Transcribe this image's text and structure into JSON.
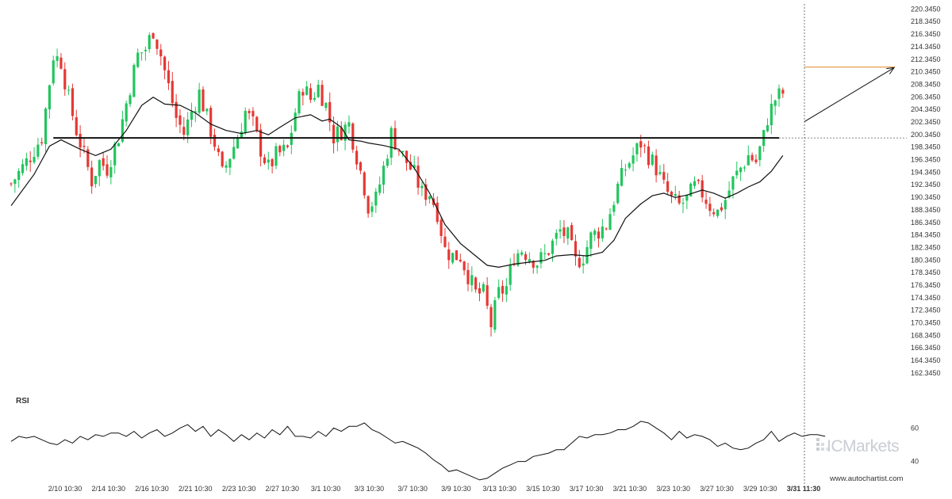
{
  "chart_data": {
    "type": "candlestick",
    "price_axis": {
      "ticks": [
        "220.3450",
        "218.3450",
        "216.3450",
        "214.3450",
        "212.3450",
        "210.3450",
        "208.3450",
        "206.3450",
        "204.3450",
        "202.3450",
        "200.3450",
        "198.3450",
        "196.3450",
        "194.3450",
        "192.3450",
        "190.3450",
        "188.3450",
        "186.3450",
        "184.3450",
        "182.3450",
        "180.3450",
        "178.3450",
        "176.3450",
        "174.3450",
        "172.3450",
        "170.3450",
        "168.3450",
        "166.3450",
        "164.3450",
        "162.3450"
      ],
      "range": [
        161.2,
        220.9
      ]
    },
    "time_axis": {
      "ticks": [
        "2/10 10:30",
        "2/14 10:30",
        "2/16 10:30",
        "2/21 10:30",
        "2/23 10:30",
        "2/27 10:30",
        "3/1 10:30",
        "3/3 10:30",
        "3/7 10:30",
        "3/9 10:30",
        "3/13 10:30",
        "3/15 10:30",
        "3/17 10:30",
        "3/21 10:30",
        "3/23 10:30",
        "3/27 10:30",
        "3/29 10:30",
        "3/31 11:30"
      ],
      "highlighted": "3/31 11:30"
    },
    "price_close_path": [
      [
        0,
        192.5
      ],
      [
        4,
        196.0
      ],
      [
        8,
        200.0
      ],
      [
        11,
        213.0
      ],
      [
        13,
        212.0
      ],
      [
        15,
        206.0
      ],
      [
        17,
        201.0
      ],
      [
        19,
        197.0
      ],
      [
        21,
        193.0
      ],
      [
        23,
        196.0
      ],
      [
        25,
        195.0
      ],
      [
        28,
        200.0
      ],
      [
        31,
        208.0
      ],
      [
        33,
        213.0
      ],
      [
        35,
        214.0
      ],
      [
        37,
        217.0
      ],
      [
        39,
        213.0
      ],
      [
        41,
        208.0
      ],
      [
        43,
        203.0
      ],
      [
        45,
        200.5
      ],
      [
        47,
        204.0
      ],
      [
        49,
        207.0
      ],
      [
        51,
        203.0
      ],
      [
        53,
        199.0
      ],
      [
        55,
        194.0
      ],
      [
        57,
        197.0
      ],
      [
        59,
        200.0
      ],
      [
        61,
        204.0
      ],
      [
        63,
        202.0
      ],
      [
        65,
        198.0
      ],
      [
        67,
        195.0
      ],
      [
        69,
        197.0
      ],
      [
        72,
        198.0
      ],
      [
        74,
        204.0
      ],
      [
        76,
        208.0
      ],
      [
        78,
        206.0
      ],
      [
        80,
        208.0
      ],
      [
        82,
        205.0
      ],
      [
        84,
        200.0
      ],
      [
        86,
        201.0
      ],
      [
        88,
        202.0
      ],
      [
        90,
        197.0
      ],
      [
        92,
        192.0
      ],
      [
        93,
        189.0
      ],
      [
        95,
        190.0
      ],
      [
        97,
        195.0
      ],
      [
        99,
        200.5
      ],
      [
        101,
        198.0
      ],
      [
        103,
        196.0
      ],
      [
        105,
        194.0
      ],
      [
        107,
        191.0
      ],
      [
        109,
        191.0
      ],
      [
        111,
        188.0
      ],
      [
        113,
        182.0
      ],
      [
        115,
        181.0
      ],
      [
        117,
        181.0
      ],
      [
        119,
        178.0
      ],
      [
        121,
        175.0
      ],
      [
        123,
        175.0
      ],
      [
        125,
        170.0
      ],
      [
        127,
        175.0
      ],
      [
        129,
        176.0
      ],
      [
        131,
        181.0
      ],
      [
        133,
        182.0
      ],
      [
        135,
        181.0
      ],
      [
        137,
        180.0
      ],
      [
        139,
        181.0
      ],
      [
        141,
        183.0
      ],
      [
        143,
        185.0
      ],
      [
        145,
        184.0
      ],
      [
        147,
        180.0
      ],
      [
        149,
        181.0
      ],
      [
        151,
        184.0
      ],
      [
        153,
        185.0
      ],
      [
        155,
        186.0
      ],
      [
        158,
        192.0
      ],
      [
        160,
        195.0
      ],
      [
        162,
        197.0
      ],
      [
        164,
        199.0
      ],
      [
        166,
        197.0
      ],
      [
        168,
        195.0
      ],
      [
        170,
        192.0
      ],
      [
        172,
        190.0
      ],
      [
        174,
        189.0
      ],
      [
        176,
        190.0
      ],
      [
        178,
        192.0
      ],
      [
        180,
        191.0
      ],
      [
        182,
        189.0
      ],
      [
        184,
        188.0
      ],
      [
        186,
        190.0
      ],
      [
        188,
        193.0
      ],
      [
        190,
        195.0
      ],
      [
        192,
        197.0
      ],
      [
        194,
        196.0
      ],
      [
        196,
        200.0
      ],
      [
        197,
        203.0
      ],
      [
        199,
        206.0
      ],
      [
        201,
        207.0
      ]
    ],
    "moving_average": [
      [
        0,
        189.0
      ],
      [
        6,
        194.0
      ],
      [
        10,
        198.5
      ],
      [
        13,
        199.5
      ],
      [
        18,
        198.0
      ],
      [
        22,
        197.0
      ],
      [
        26,
        198.0
      ],
      [
        30,
        201.0
      ],
      [
        34,
        205.0
      ],
      [
        37,
        206.3
      ],
      [
        40,
        205.2
      ],
      [
        44,
        205.0
      ],
      [
        48,
        203.8
      ],
      [
        52,
        202.0
      ],
      [
        56,
        201.0
      ],
      [
        60,
        200.5
      ],
      [
        64,
        201.0
      ],
      [
        67,
        200.3
      ],
      [
        70,
        201.5
      ],
      [
        74,
        203.0
      ],
      [
        78,
        203.5
      ],
      [
        81,
        202.5
      ],
      [
        83,
        202.8
      ],
      [
        86,
        201.5
      ],
      [
        88,
        199.5
      ],
      [
        91,
        199.3
      ],
      [
        93,
        199.0
      ],
      [
        97,
        198.6
      ],
      [
        101,
        198.0
      ],
      [
        105,
        195.0
      ],
      [
        109,
        191.0
      ],
      [
        113,
        186.0
      ],
      [
        117,
        183.0
      ],
      [
        121,
        181.0
      ],
      [
        124,
        179.5
      ],
      [
        127,
        179.2
      ],
      [
        131,
        179.7
      ],
      [
        135,
        180.0
      ],
      [
        139,
        180.3
      ],
      [
        142,
        181.0
      ],
      [
        146,
        181.2
      ],
      [
        150,
        181.0
      ],
      [
        154,
        181.6
      ],
      [
        157,
        183.5
      ],
      [
        160,
        187.0
      ],
      [
        164,
        189.3
      ],
      [
        167,
        190.6
      ],
      [
        170,
        191.0
      ],
      [
        173,
        190.3
      ],
      [
        176,
        190.7
      ],
      [
        180,
        191.5
      ],
      [
        183,
        191.0
      ],
      [
        186,
        190.2
      ],
      [
        189,
        191.0
      ],
      [
        192,
        192.0
      ],
      [
        195,
        192.8
      ],
      [
        198,
        194.5
      ],
      [
        201,
        197.0
      ]
    ],
    "support_line": {
      "value": 199.8,
      "from_index": 11,
      "to_index": 200
    },
    "target_line": {
      "value": 211.1,
      "from_index": 200,
      "to_index": 220
    },
    "projection_arrow": {
      "from": [
        200,
        202.4
      ],
      "to": [
        220,
        211.0
      ]
    },
    "rsi": {
      "title": "RSI",
      "ticks": [
        "60",
        "40"
      ],
      "range": [
        28,
        72
      ],
      "values": [
        [
          0,
          52
        ],
        [
          2,
          55
        ],
        [
          4,
          54
        ],
        [
          6,
          55
        ],
        [
          8,
          53
        ],
        [
          10,
          51
        ],
        [
          12,
          50
        ],
        [
          14,
          53
        ],
        [
          16,
          51
        ],
        [
          18,
          55
        ],
        [
          20,
          53
        ],
        [
          22,
          56
        ],
        [
          24,
          55
        ],
        [
          26,
          57
        ],
        [
          28,
          57
        ],
        [
          30,
          55
        ],
        [
          32,
          58
        ],
        [
          34,
          54
        ],
        [
          36,
          57
        ],
        [
          38,
          59
        ],
        [
          40,
          55
        ],
        [
          42,
          57
        ],
        [
          44,
          60
        ],
        [
          46,
          62
        ],
        [
          48,
          58
        ],
        [
          50,
          61
        ],
        [
          52,
          55
        ],
        [
          54,
          59
        ],
        [
          56,
          56
        ],
        [
          58,
          52
        ],
        [
          60,
          56
        ],
        [
          62,
          53
        ],
        [
          64,
          57
        ],
        [
          66,
          54
        ],
        [
          68,
          59
        ],
        [
          70,
          56
        ],
        [
          72,
          61
        ],
        [
          74,
          55
        ],
        [
          76,
          55
        ],
        [
          78,
          54
        ],
        [
          80,
          58
        ],
        [
          82,
          55
        ],
        [
          84,
          60
        ],
        [
          86,
          58
        ],
        [
          88,
          61
        ],
        [
          90,
          61
        ],
        [
          92,
          63
        ],
        [
          94,
          59
        ],
        [
          96,
          57
        ],
        [
          98,
          54
        ],
        [
          100,
          51
        ],
        [
          102,
          52
        ],
        [
          104,
          50
        ],
        [
          106,
          48
        ],
        [
          108,
          45
        ],
        [
          110,
          41
        ],
        [
          112,
          38
        ],
        [
          114,
          34
        ],
        [
          116,
          35
        ],
        [
          118,
          33
        ],
        [
          120,
          31
        ],
        [
          122,
          29
        ],
        [
          124,
          30
        ],
        [
          126,
          33
        ],
        [
          128,
          36
        ],
        [
          130,
          38
        ],
        [
          132,
          40
        ],
        [
          134,
          40
        ],
        [
          136,
          43
        ],
        [
          138,
          44
        ],
        [
          140,
          45
        ],
        [
          142,
          47
        ],
        [
          144,
          47
        ],
        [
          146,
          51
        ],
        [
          148,
          55
        ],
        [
          150,
          54
        ],
        [
          152,
          56
        ],
        [
          154,
          56
        ],
        [
          156,
          57
        ],
        [
          158,
          59
        ],
        [
          160,
          59
        ],
        [
          162,
          61
        ],
        [
          164,
          64
        ],
        [
          166,
          63
        ],
        [
          168,
          60
        ],
        [
          170,
          57
        ],
        [
          172,
          53
        ],
        [
          174,
          58
        ],
        [
          176,
          54
        ],
        [
          178,
          56
        ],
        [
          180,
          55
        ],
        [
          182,
          53
        ],
        [
          184,
          49
        ],
        [
          186,
          51
        ],
        [
          188,
          48
        ],
        [
          190,
          47
        ],
        [
          192,
          48
        ],
        [
          194,
          51
        ],
        [
          196,
          53
        ],
        [
          198,
          58
        ],
        [
          200,
          52
        ],
        [
          202,
          55
        ],
        [
          204,
          57
        ],
        [
          206,
          55
        ],
        [
          208,
          56
        ],
        [
          210,
          56
        ],
        [
          212,
          55
        ]
      ]
    }
  },
  "branding": {
    "watermark": "ICMarkets",
    "website": "www.autochartist.com"
  },
  "colors": {
    "up": "#22c55e",
    "down": "#e53935",
    "line": "#111111",
    "target": "#e6a04a",
    "axis": "#333333",
    "crosshair": "#555555"
  }
}
